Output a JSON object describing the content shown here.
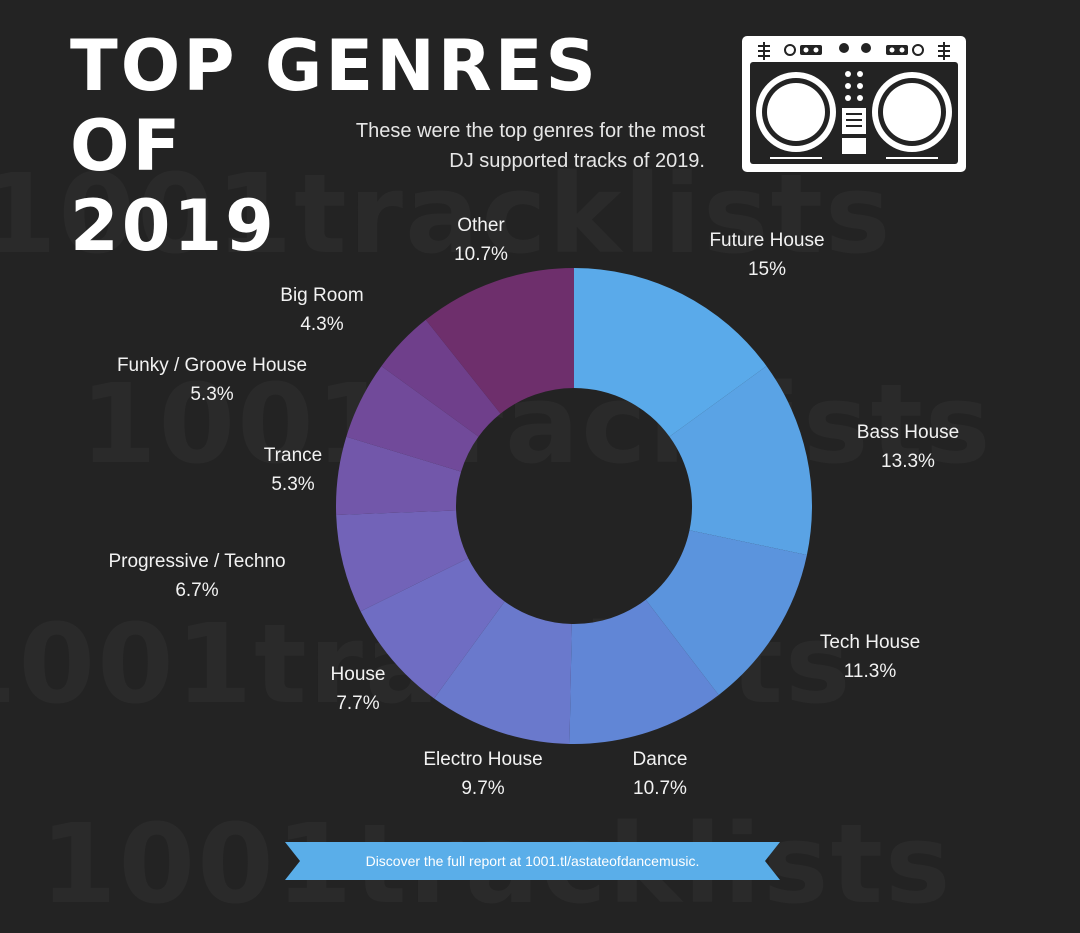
{
  "title_line1": "TOP GENRES OF",
  "title_line2": "2019",
  "subtitle_line1": "These were the top genres for the most",
  "subtitle_line2": "DJ supported tracks of 2019.",
  "footer_text": "Discover the full report at 1001.tl/astateofdancemusic.",
  "colors": {
    "background": "#232323",
    "banner": "#5aaee9",
    "hole": "#232323"
  },
  "chart_data": {
    "type": "pie",
    "variant": "donut",
    "title": "TOP GENRES OF 2019",
    "slices": [
      {
        "label": "Future House",
        "value": 15,
        "display": "15%",
        "color": "#5aaaea"
      },
      {
        "label": "Bass House",
        "value": 13.3,
        "display": "13.3%",
        "color": "#5aa3e5"
      },
      {
        "label": "Tech House",
        "value": 11.3,
        "display": "11.3%",
        "color": "#5b94dd"
      },
      {
        "label": "Dance",
        "value": 10.7,
        "display": "10.7%",
        "color": "#6186d6"
      },
      {
        "label": "Electro House",
        "value": 9.7,
        "display": "9.7%",
        "color": "#6a79cc"
      },
      {
        "label": "House",
        "value": 7.7,
        "display": "7.7%",
        "color": "#6f6dc3"
      },
      {
        "label": "Progressive / Techno",
        "value": 6.7,
        "display": "6.7%",
        "color": "#7263b8"
      },
      {
        "label": "Trance",
        "value": 5.3,
        "display": "5.3%",
        "color": "#7257aa"
      },
      {
        "label": "Funky / Groove House",
        "value": 5.3,
        "display": "5.3%",
        "color": "#714a9a"
      },
      {
        "label": "Big Room",
        "value": 4.3,
        "display": "4.3%",
        "color": "#6f3f8b"
      },
      {
        "label": "Other",
        "value": 10.7,
        "display": "10.7%",
        "color": "#6e2f6c"
      }
    ]
  }
}
